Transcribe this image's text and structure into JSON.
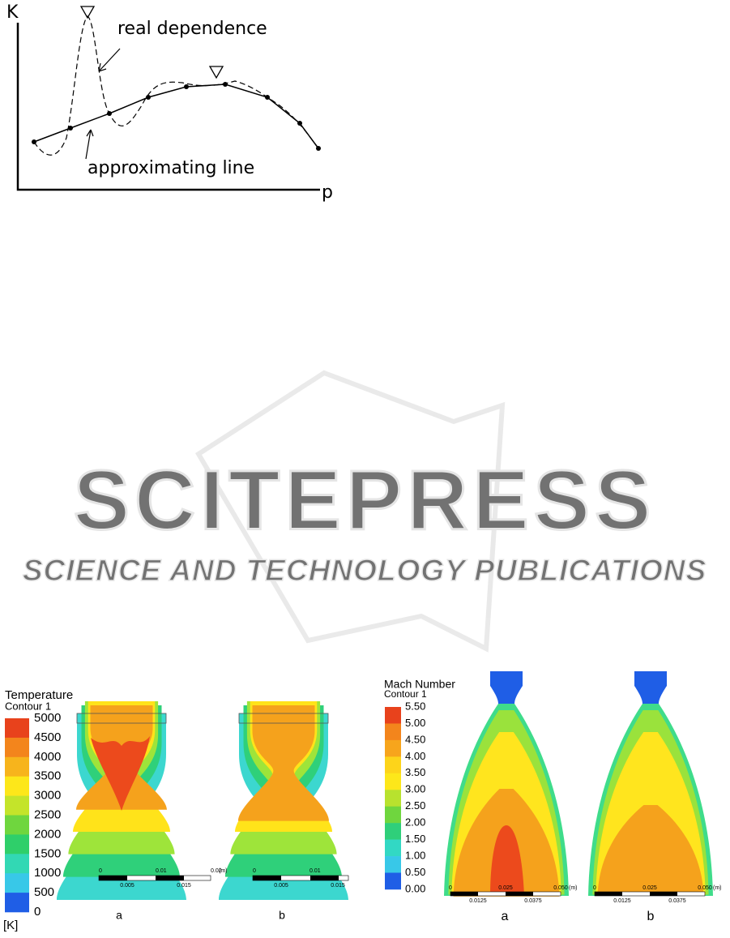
{
  "figure1": {
    "y_label": "K",
    "x_label": "p",
    "annotations": [
      "real dependence",
      "approximating line"
    ]
  },
  "watermark": {
    "title": "SCITEPRESS",
    "subtitle": "SCIENCE AND TECHNOLOGY PUBLICATIONS"
  },
  "figure2": {
    "title": "Temperature",
    "subtitle": "Contour 1",
    "legend": [
      "5000",
      "4500",
      "4000",
      "3500",
      "3000",
      "2500",
      "2000",
      "1500",
      "1000",
      "500",
      "0"
    ],
    "unit": "[K]",
    "panels": [
      {
        "label": "a",
        "scale_top": [
          "0",
          "0.01",
          "0.02",
          "(m)"
        ],
        "scale_bottom": [
          "0.005",
          "0.015"
        ]
      },
      {
        "label": "b",
        "scale_top": [
          "0",
          "0.01"
        ],
        "scale_bottom": [
          "0.005",
          "0.015"
        ]
      }
    ]
  },
  "figure3": {
    "title": "Mach Number",
    "subtitle": "Contour 1",
    "legend": [
      "5.50",
      "5.00",
      "4.50",
      "4.00",
      "3.50",
      "3.00",
      "2.50",
      "2.00",
      "1.50",
      "1.00",
      "0.50",
      "0.00"
    ],
    "panels": [
      {
        "label": "a",
        "scale_top": [
          "0",
          "0.025",
          "0.050",
          "(m)"
        ],
        "scale_bottom": [
          "0.0125",
          "0.0375"
        ]
      },
      {
        "label": "b",
        "scale_top": [
          "0",
          "0.025",
          "0.050",
          "(m)"
        ],
        "scale_bottom": [
          "0.0125",
          "0.0375"
        ]
      }
    ]
  }
}
